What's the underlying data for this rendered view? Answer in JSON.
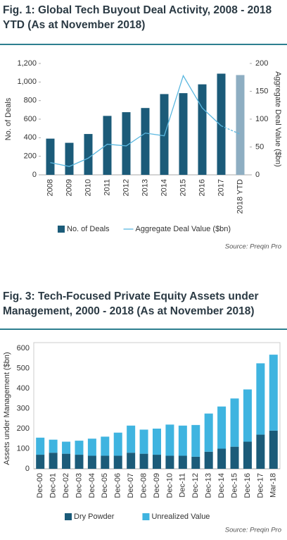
{
  "chart_data": [
    {
      "type": "bar",
      "title": "Fig. 1: Global Tech Buyout Deal Activity, 2008 - 2018 YTD (As at November 2018)",
      "y_label": "No. of Deals",
      "y2_label": "Aggregate Deal Value ($bn)",
      "source": "Source: Preqin Pro",
      "categories": [
        "2008",
        "2009",
        "2010",
        "2011",
        "2012",
        "2013",
        "2014",
        "2015",
        "2016",
        "2017",
        "2018 YTD"
      ],
      "series": [
        {
          "name": "No. of Deals",
          "type": "bar",
          "color": "#1b5b79",
          "colors": [
            "#1b5b79",
            "#1b5b79",
            "#1b5b79",
            "#1b5b79",
            "#1b5b79",
            "#1b5b79",
            "#1b5b79",
            "#1b5b79",
            "#1b5b79",
            "#1b5b79",
            "#8eaec2"
          ],
          "values": [
            390,
            345,
            440,
            635,
            675,
            720,
            870,
            880,
            975,
            1090,
            1075
          ]
        },
        {
          "name": "Aggregate Deal Value ($bn)",
          "type": "line",
          "axis": "y2",
          "color": "#5bb8e0",
          "dashed_last": true,
          "values": [
            22,
            15,
            30,
            55,
            52,
            75,
            70,
            178,
            120,
            88,
            73
          ]
        }
      ],
      "ylim": [
        0,
        1200
      ],
      "yticks": [
        0,
        200,
        400,
        600,
        800,
        {
          "value": 1000,
          "label": "1,000"
        },
        {
          "value": 1200,
          "label": "1,200"
        }
      ],
      "y2lim": [
        0,
        200
      ],
      "y2ticks": [
        0,
        50,
        100,
        150,
        200
      ],
      "grid": false
    },
    {
      "type": "stacked_bar",
      "title": "Fig. 3: Tech-Focused Private Equity Assets under Management, 2000 - 2018 (As at November 2018)",
      "y_label": "Assets under Management ($bn)",
      "source": "Source: Preqin Pro",
      "categories": [
        "Dec-00",
        "Dec-01",
        "Dec-02",
        "Dec-03",
        "Dec-04",
        "Dec-05",
        "Dec-06",
        "Dec-07",
        "Dec-08",
        "Dec-09",
        "Dec-10",
        "Dec-11",
        "Dec-12",
        "Dec-13",
        "Dec-14",
        "Dec-15",
        "Dec-16",
        "Dec-17",
        "Mar-18"
      ],
      "series": [
        {
          "name": "Dry Powder",
          "color": "#1b5b79",
          "values": [
            70,
            80,
            75,
            70,
            65,
            65,
            65,
            80,
            75,
            70,
            65,
            65,
            60,
            85,
            100,
            110,
            135,
            170,
            190
          ]
        },
        {
          "name": "Unrealized Value",
          "color": "#3fb4e0",
          "values": [
            85,
            65,
            60,
            70,
            85,
            95,
            115,
            135,
            120,
            130,
            155,
            150,
            158,
            190,
            210,
            240,
            260,
            355,
            378
          ]
        }
      ],
      "ylim": [
        0,
        600
      ],
      "yticks": [
        0,
        100,
        200,
        300,
        400,
        500,
        600
      ],
      "grid": false
    }
  ]
}
